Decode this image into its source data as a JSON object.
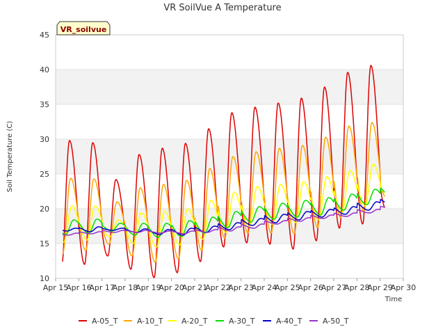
{
  "chart_data": {
    "type": "line",
    "title": "VR SoilVue A Temperature",
    "xlabel": "Time",
    "ylabel": "Soil Temperature (C)",
    "station_label": "VR_soilvue",
    "xlim": [
      15,
      30
    ],
    "ylim": [
      10,
      45
    ],
    "x_ticks": [
      15,
      16,
      17,
      18,
      19,
      20,
      21,
      22,
      23,
      24,
      25,
      26,
      27,
      28,
      29,
      30
    ],
    "x_tick_labels": [
      "Apr 15",
      "Apr 16",
      "Apr 17",
      "Apr 18",
      "Apr 19",
      "Apr 20",
      "Apr 21",
      "Apr 22",
      "Apr 23",
      "Apr 24",
      "Apr 25",
      "Apr 26",
      "Apr 27",
      "Apr 28",
      "Apr 29",
      "Apr 30"
    ],
    "y_ticks": [
      10,
      15,
      20,
      25,
      30,
      35,
      40,
      45
    ],
    "grid": true,
    "legend_position": "bottom",
    "x_start": 15.3,
    "x_end": 29.2,
    "peak_time": 0.6,
    "trough_time": 0.25,
    "series": [
      {
        "name": "A-05_T",
        "color": "#dd0000",
        "lag": 0.0,
        "min": [
          11.5,
          12.0,
          13.2,
          11.3,
          10.1,
          10.8,
          12.4,
          14.5,
          15.1,
          14.9,
          14.2,
          15.4,
          17.2,
          17.8,
          20.0
        ],
        "max": [
          29.8,
          29.5,
          24.2,
          27.8,
          28.7,
          29.4,
          31.5,
          33.8,
          34.6,
          35.2,
          35.9,
          37.5,
          39.6,
          40.6,
          30.0
        ]
      },
      {
        "name": "A-10_T",
        "color": "#ffa500",
        "lag": 0.05,
        "min": [
          13.5,
          14.0,
          14.9,
          13.2,
          12.3,
          12.8,
          14.0,
          15.8,
          16.5,
          16.5,
          16.4,
          17.3,
          18.7,
          19.6,
          21.5
        ],
        "max": [
          24.4,
          24.3,
          21.0,
          23.0,
          23.5,
          24.1,
          25.8,
          27.5,
          28.2,
          28.7,
          29.1,
          30.3,
          31.9,
          32.4,
          26.0
        ]
      },
      {
        "name": "A-20_T",
        "color": "#ffff00",
        "lag": 0.1,
        "min": [
          15.2,
          15.5,
          16.0,
          15.0,
          14.5,
          14.8,
          15.6,
          16.6,
          17.5,
          17.8,
          18.0,
          18.4,
          19.4,
          20.4,
          22.0
        ],
        "max": [
          20.4,
          20.4,
          18.4,
          19.4,
          19.6,
          20.0,
          21.2,
          22.4,
          23.2,
          23.5,
          23.9,
          24.6,
          25.5,
          26.4,
          24.0
        ]
      },
      {
        "name": "A-30_T",
        "color": "#00dd00",
        "lag": 0.18,
        "min": [
          16.3,
          16.5,
          16.8,
          16.2,
          15.9,
          16.0,
          16.5,
          17.3,
          18.1,
          18.5,
          18.8,
          19.1,
          19.8,
          20.6,
          22.0
        ],
        "max": [
          18.4,
          18.5,
          17.9,
          17.9,
          17.9,
          18.3,
          18.8,
          19.6,
          20.3,
          20.8,
          21.2,
          21.6,
          22.1,
          22.8,
          23.4
        ]
      },
      {
        "name": "A-40_T",
        "color": "#0000cc",
        "lag": 0.25,
        "min": [
          16.8,
          16.7,
          16.9,
          16.6,
          16.3,
          16.2,
          16.6,
          17.0,
          17.6,
          18.0,
          18.4,
          18.8,
          19.2,
          19.8,
          20.5
        ],
        "max": [
          17.2,
          17.4,
          17.2,
          17.1,
          17.0,
          17.2,
          17.5,
          18.0,
          18.6,
          19.2,
          19.6,
          19.9,
          20.3,
          21.0,
          21.5
        ]
      },
      {
        "name": "A-50_T",
        "color": "#9932cc",
        "lag": 0.3,
        "min": [
          16.2,
          16.4,
          16.6,
          16.6,
          16.5,
          16.4,
          16.6,
          16.8,
          17.2,
          17.8,
          18.2,
          18.6,
          18.9,
          19.4,
          19.9
        ],
        "max": [
          16.5,
          16.7,
          16.9,
          16.9,
          16.8,
          16.8,
          17.0,
          17.4,
          17.8,
          18.3,
          18.7,
          19.1,
          19.4,
          19.9,
          20.4
        ]
      }
    ]
  }
}
